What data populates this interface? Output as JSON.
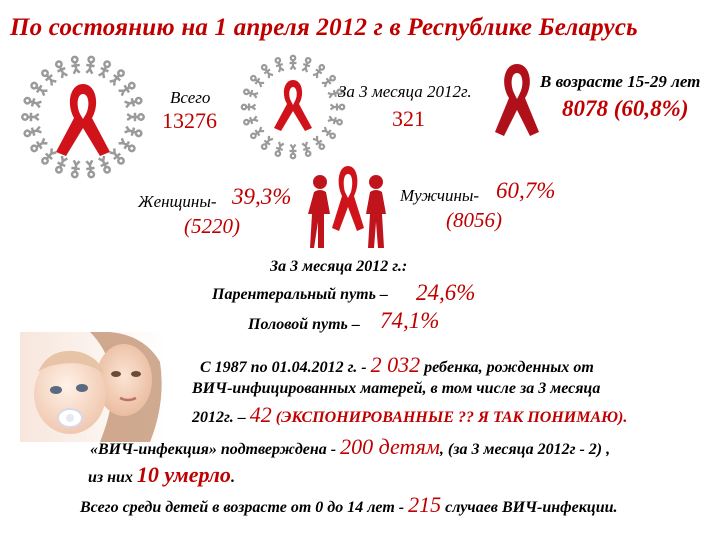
{
  "title": "По состоянию на 1 апреля 2012 г в Республике Беларусь",
  "stats": {
    "total_label": "Всего",
    "total_value": "13276",
    "q_label": "За 3 месяца 2012г.",
    "q_value": "321",
    "age_label": "В возрасте 15-29 лет",
    "age_value": "8078 (60,8%)",
    "women_label": "Женщины-",
    "women_pct": "39,3%",
    "women_count": "(5220)",
    "men_label": "Мужчины-",
    "men_pct": "60,7%",
    "men_count": "(8056)"
  },
  "routes": {
    "heading": "За 3 месяца 2012 г.:",
    "parenteral_label": "Парентеральный путь –",
    "parenteral_value": "24,6%",
    "sexual_label": "Половой путь –",
    "sexual_value": "74,1%"
  },
  "children": {
    "line1_a": "С 1987 по 01.04.2012 г.  -",
    "line1_num": "2 032",
    "line1_b": "ребенка, рожденных от",
    "line2": "ВИЧ-инфицированных матерей, в том числе за 3 месяца",
    "line3_a": "2012г. –",
    "line3_num": "42",
    "line3_b": "(ЭКСПОНИРОВАННЫЕ ?? Я ТАК ПОНИМАЮ).",
    "line4_a": "«ВИЧ-инфекция» подтверждена -",
    "line4_num": "200 детям",
    "line4_b": ", (за 3 месяца 2012г - 2) ,",
    "line5_a": "из них",
    "line5_num": "10 умерло",
    "line5_b": ".",
    "line6_a": "Всего среди детей в возрасте от 0 до 14 лет  -",
    "line6_num": "215",
    "line6_b": "случаев ВИЧ-инфекции."
  },
  "colors": {
    "ribbon": "#d0131a",
    "accent_text": "#c00000",
    "ring": "#9a9a9a"
  },
  "icons": [
    "ribbon-ring-icon",
    "ribbon-ring-icon",
    "red-ribbon-icon",
    "people-ribbon-icon",
    "mother-baby-photo"
  ]
}
